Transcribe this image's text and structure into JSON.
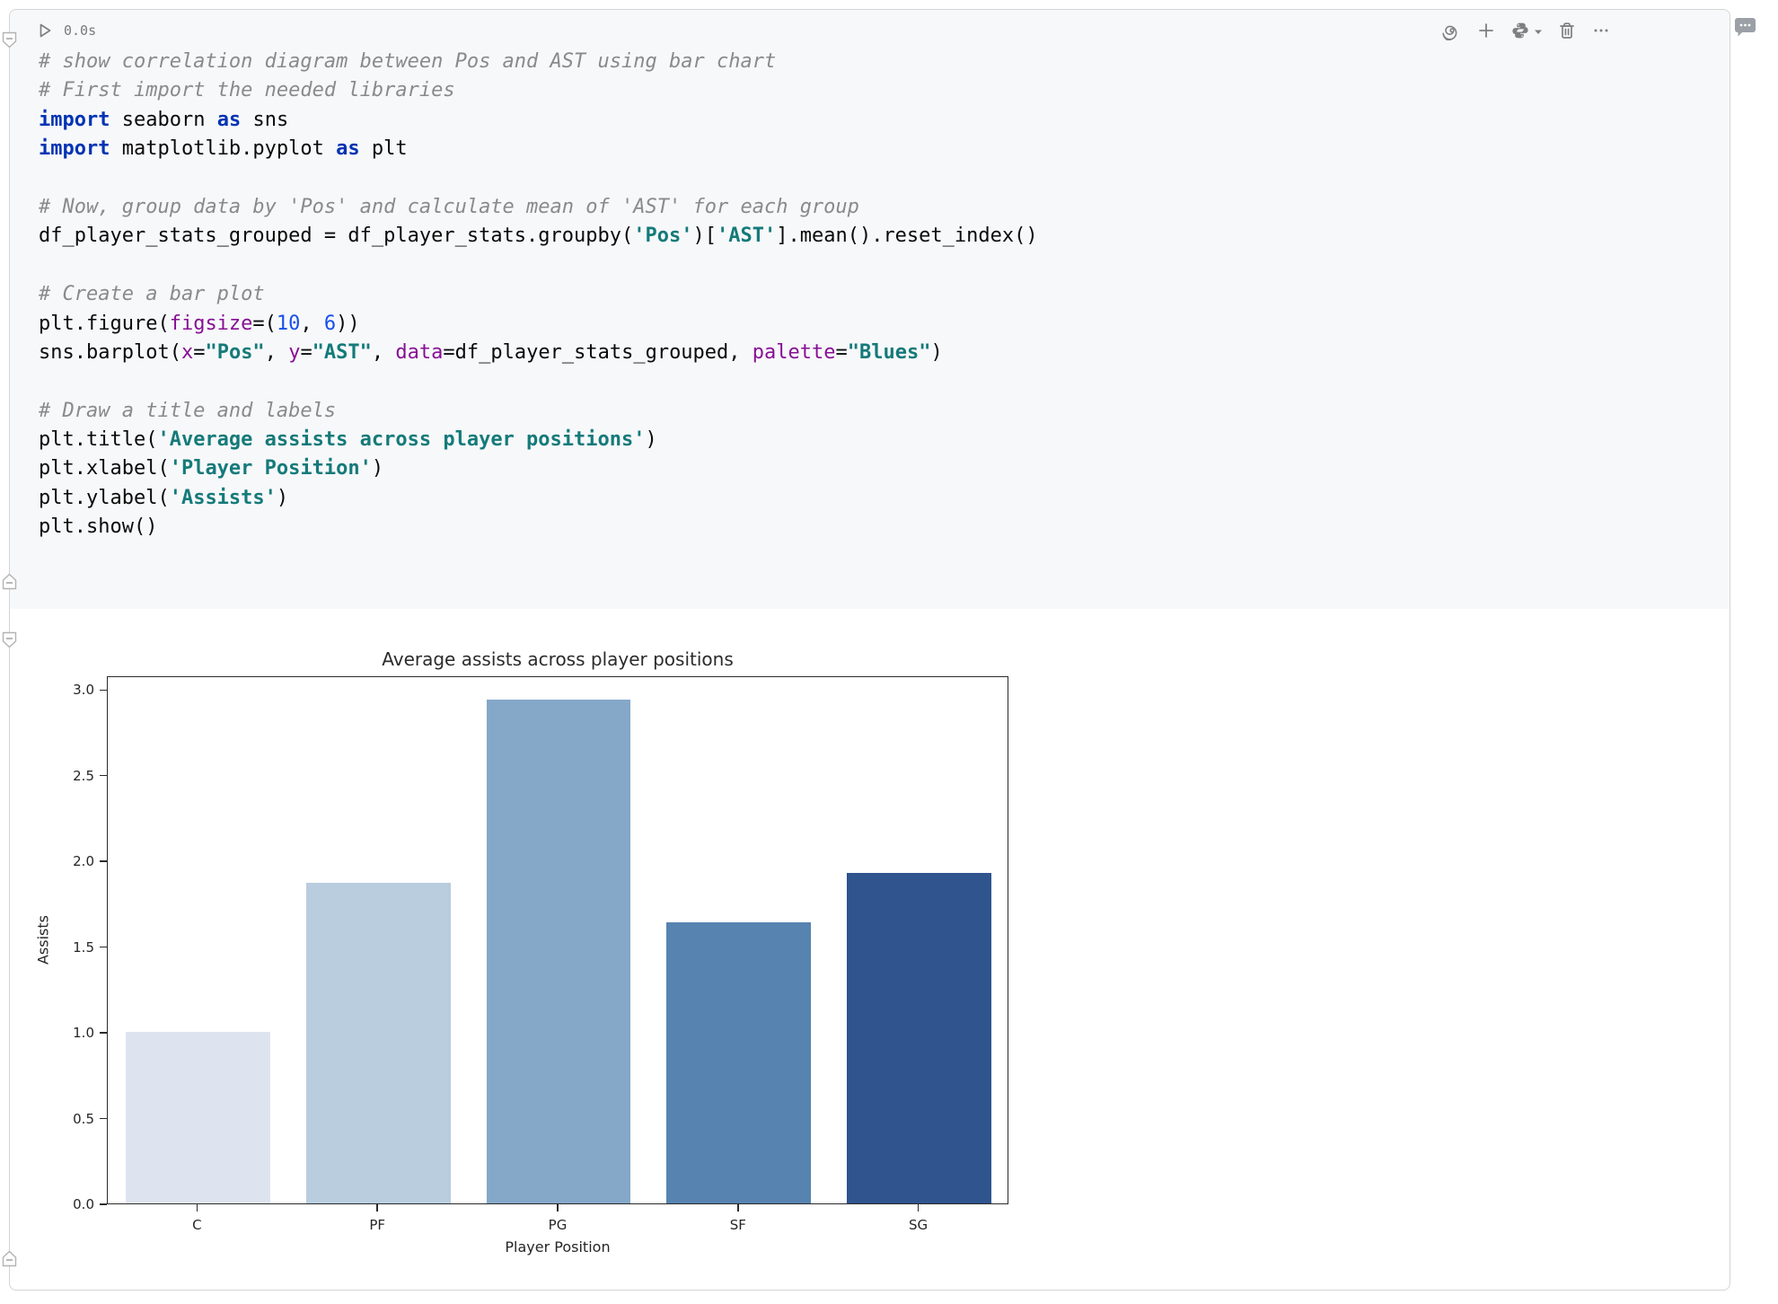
{
  "cell": {
    "exec_time": "0.0s",
    "toolbar_icons": [
      "run",
      "spiral",
      "add-cell",
      "python-kernel",
      "chevron-down",
      "delete-cell",
      "more-options"
    ],
    "side_icon": "comment-bubble",
    "gutter_markers": [
      "collapse-cell-top",
      "collapse-code-bottom",
      "collapse-output-top",
      "collapse-output-bottom"
    ]
  },
  "code": {
    "lines": [
      [
        {
          "t": "cmt",
          "v": "# show correlation diagram between Pos and AST using bar chart"
        }
      ],
      [
        {
          "t": "cmt",
          "v": "# First import the needed libraries"
        }
      ],
      [
        {
          "t": "kw",
          "v": "import"
        },
        {
          "t": "txt",
          "v": " seaborn "
        },
        {
          "t": "kw",
          "v": "as"
        },
        {
          "t": "txt",
          "v": " sns"
        }
      ],
      [
        {
          "t": "kw",
          "v": "import"
        },
        {
          "t": "txt",
          "v": " matplotlib.pyplot "
        },
        {
          "t": "kw",
          "v": "as"
        },
        {
          "t": "txt",
          "v": " plt"
        }
      ],
      [],
      [
        {
          "t": "cmt",
          "v": "# Now, group data by 'Pos' and calculate mean of 'AST' for each group"
        }
      ],
      [
        {
          "t": "txt",
          "v": "df_player_stats_grouped = df_player_stats.groupby("
        },
        {
          "t": "str",
          "v": "'Pos'"
        },
        {
          "t": "txt",
          "v": ")["
        },
        {
          "t": "str",
          "v": "'AST'"
        },
        {
          "t": "txt",
          "v": "].mean().reset_index()"
        }
      ],
      [],
      [
        {
          "t": "cmt",
          "v": "# Create a bar plot"
        }
      ],
      [
        {
          "t": "txt",
          "v": "plt.figure("
        },
        {
          "t": "param",
          "v": "figsize"
        },
        {
          "t": "txt",
          "v": "=("
        },
        {
          "t": "num",
          "v": "10"
        },
        {
          "t": "txt",
          "v": ", "
        },
        {
          "t": "num",
          "v": "6"
        },
        {
          "t": "txt",
          "v": "))"
        }
      ],
      [
        {
          "t": "txt",
          "v": "sns.barplot("
        },
        {
          "t": "param",
          "v": "x"
        },
        {
          "t": "txt",
          "v": "="
        },
        {
          "t": "str",
          "v": "\"Pos\""
        },
        {
          "t": "txt",
          "v": ", "
        },
        {
          "t": "param",
          "v": "y"
        },
        {
          "t": "txt",
          "v": "="
        },
        {
          "t": "str",
          "v": "\"AST\""
        },
        {
          "t": "txt",
          "v": ", "
        },
        {
          "t": "param",
          "v": "data"
        },
        {
          "t": "txt",
          "v": "=df_player_stats_grouped, "
        },
        {
          "t": "param",
          "v": "palette"
        },
        {
          "t": "txt",
          "v": "="
        },
        {
          "t": "str",
          "v": "\"Blues\""
        },
        {
          "t": "txt",
          "v": ")"
        }
      ],
      [],
      [
        {
          "t": "cmt",
          "v": "# Draw a title and labels"
        }
      ],
      [
        {
          "t": "txt",
          "v": "plt.title("
        },
        {
          "t": "str",
          "v": "'Average assists across player positions'"
        },
        {
          "t": "txt",
          "v": ")"
        }
      ],
      [
        {
          "t": "txt",
          "v": "plt.xlabel("
        },
        {
          "t": "str",
          "v": "'Player Position'"
        },
        {
          "t": "txt",
          "v": ")"
        }
      ],
      [
        {
          "t": "txt",
          "v": "plt.ylabel("
        },
        {
          "t": "str",
          "v": "'Assists'"
        },
        {
          "t": "txt",
          "v": ")"
        }
      ],
      [
        {
          "t": "txt",
          "v": "plt.show()"
        }
      ]
    ]
  },
  "chart_data": {
    "type": "bar",
    "title": "Average assists across player positions",
    "xlabel": "Player Position",
    "ylabel": "Assists",
    "categories": [
      "C",
      "PF",
      "PG",
      "SF",
      "SG"
    ],
    "values": [
      1.0,
      1.87,
      2.94,
      1.64,
      1.93
    ],
    "bar_colors": [
      "#dde4f0",
      "#b9cdde",
      "#85a8c9",
      "#5683b0",
      "#2f548e"
    ],
    "yticks": [
      0.0,
      0.5,
      1.0,
      1.5,
      2.0,
      2.5,
      3.0
    ],
    "ytick_labels": [
      "0.0",
      "0.5",
      "1.0",
      "1.5",
      "2.0",
      "2.5",
      "3.0"
    ],
    "ylim": [
      0,
      3.08
    ],
    "grid": false,
    "legend": null
  },
  "colors": {
    "code_background": "#f7f8fa",
    "cell_border": "#d4d4d4",
    "icon_gray": "#7f7f7f",
    "keyword": "#0033b3",
    "string": "#157a7a",
    "number": "#1750eb",
    "named_param": "#871094",
    "comment": "#8a8a8a"
  }
}
